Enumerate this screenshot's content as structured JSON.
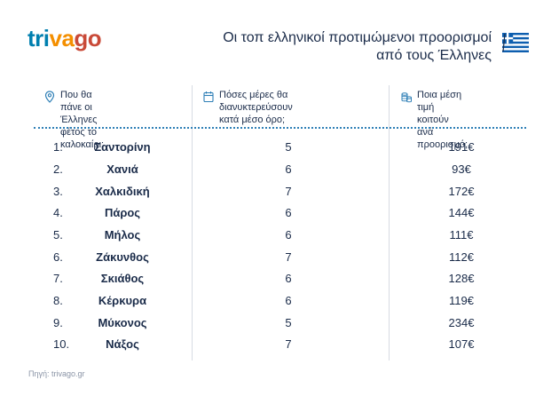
{
  "brand": {
    "part1": "tri",
    "part2": "va",
    "part3": "go"
  },
  "title": {
    "line1": "Οι τοπ ελληνικοί προτιμώμενοι προορισμοί",
    "line2": "από τους Έλληνες"
  },
  "flag_icon": "greek-flag",
  "columns": [
    {
      "icon": "location-pin-icon",
      "line1": "Που θα πάνε οι Έλληνες",
      "line2": "φέτος το καλοκαίρι;"
    },
    {
      "icon": "calendar-icon",
      "line1": "Πόσες μέρες θα",
      "line2": "διανυκτερεύσουν κατά μέσο όρο;"
    },
    {
      "icon": "coins-icon",
      "line1": "Ποια μέση τιμή κοιτούν",
      "line2": "ανά προορισμό;"
    }
  ],
  "rows": [
    {
      "rank": "1.",
      "destination": "Σαντορίνη",
      "days": "5",
      "price": "191€"
    },
    {
      "rank": "2.",
      "destination": "Χανιά",
      "days": "6",
      "price": "93€"
    },
    {
      "rank": "3.",
      "destination": "Χαλκιδική",
      "days": "7",
      "price": "172€"
    },
    {
      "rank": "4.",
      "destination": "Πάρος",
      "days": "6",
      "price": "144€"
    },
    {
      "rank": "5.",
      "destination": "Μήλος",
      "days": "6",
      "price": "111€"
    },
    {
      "rank": "6.",
      "destination": "Ζάκυνθος",
      "days": "7",
      "price": "112€"
    },
    {
      "rank": "7.",
      "destination": "Σκιάθος",
      "days": "6",
      "price": "128€"
    },
    {
      "rank": "8.",
      "destination": "Κέρκυρα",
      "days": "6",
      "price": "119€"
    },
    {
      "rank": "9.",
      "destination": "Μύκονος",
      "days": "5",
      "price": "234€"
    },
    {
      "rank": "10.",
      "destination": "Νάξος",
      "days": "7",
      "price": "107€"
    }
  ],
  "source": "Πηγή: trivago.gr",
  "colors": {
    "text": "#1a2b49",
    "accent": "#2e7fb6",
    "logo_blue": "#007faf",
    "logo_orange": "#f48f00",
    "logo_red": "#c94a38"
  }
}
